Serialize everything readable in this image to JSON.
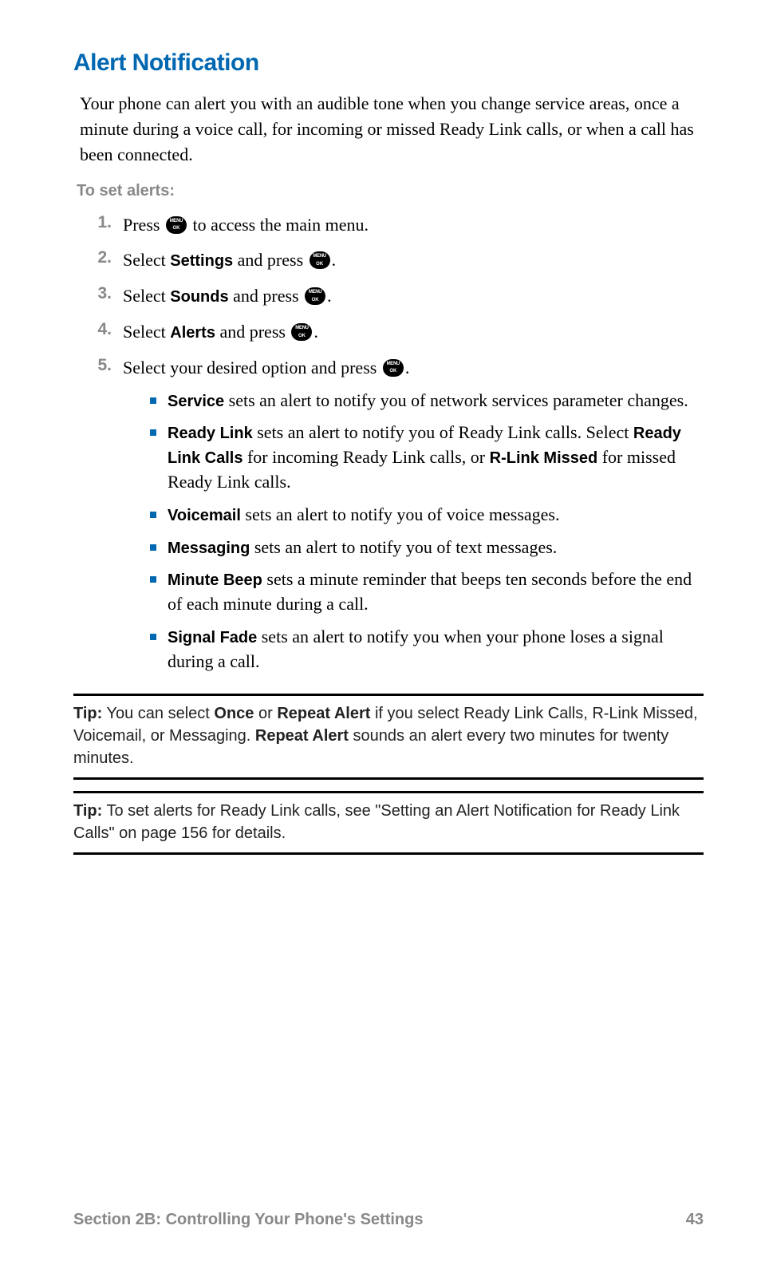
{
  "title": "Alert Notification",
  "intro": "Your phone can alert you with an audible tone when you change service areas, once a minute during a voice call, for incoming or missed Ready Link calls, or when a call has been connected.",
  "subhead": "To set alerts:",
  "steps": {
    "s1": {
      "num": "1.",
      "a": "Press ",
      "b": " to access the main menu."
    },
    "s2": {
      "num": "2.",
      "a": "Select ",
      "bold": "Settings",
      "b": " and press ",
      "c": "."
    },
    "s3": {
      "num": "3.",
      "a": "Select ",
      "bold": "Sounds",
      "b": " and press ",
      "c": "."
    },
    "s4": {
      "num": "4.",
      "a": "Select ",
      "bold": "Alerts",
      "b": " and press ",
      "c": "."
    },
    "s5": {
      "num": "5.",
      "a": "Select your desired option and press ",
      "b": "."
    }
  },
  "bullets": {
    "b1": {
      "bold": "Service",
      "rest": " sets an alert to notify you of network services parameter changes."
    },
    "b2": {
      "bold1": "Ready Link",
      "t1": " sets an alert to notify you of Ready Link calls. Select ",
      "bold2": "Ready Link Calls",
      "t2": " for incoming Ready Link calls, or ",
      "bold3": "R-Link Missed",
      "t3": " for missed Ready Link calls."
    },
    "b3": {
      "bold": "Voicemail",
      "rest": " sets an alert to notify you of voice messages."
    },
    "b4": {
      "bold": "Messaging",
      "rest": " sets an alert to notify you of text messages."
    },
    "b5": {
      "bold": "Minute Beep",
      "rest": " sets a minute reminder that beeps ten seconds before the end of each minute during a call."
    },
    "b6": {
      "bold": "Signal Fade",
      "rest": " sets an alert to notify you when your phone loses a signal during a call."
    }
  },
  "tip1": {
    "label": "Tip:",
    "t1": " You can select ",
    "b1": "Once",
    "t2": " or ",
    "b2": "Repeat Alert",
    "t3": " if you select Ready Link Calls, R-Link Missed, Voicemail, or Messaging. ",
    "b3": "Repeat Alert",
    "t4": " sounds an alert every two minutes for twenty minutes."
  },
  "tip2": {
    "label": "Tip:",
    "t1": " To set alerts for Ready Link calls, see \"Setting an Alert Notification for Ready Link Calls\" on page 156 for details."
  },
  "footer": {
    "section": "Section 2B: Controlling Your Phone's Settings",
    "page": "43"
  },
  "colors": {
    "accent": "#0067b1",
    "muted": "#888888"
  }
}
